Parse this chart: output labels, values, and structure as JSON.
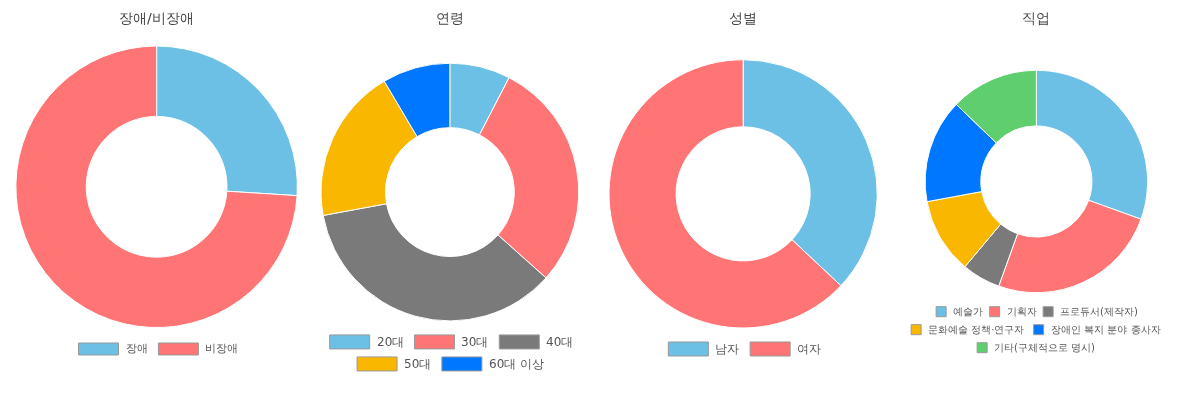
{
  "chart_data": [
    {
      "type": "donut",
      "title": "장애/비장애",
      "categories": [
        "장애",
        "비장애"
      ],
      "values": [
        26,
        74
      ],
      "colors": [
        "#6cc0e5",
        "#ff7575"
      ],
      "legend": "bottom"
    },
    {
      "type": "donut",
      "title": "연령",
      "categories": [
        "20대",
        "30대",
        "40대",
        "50대",
        "60대 이상"
      ],
      "values": [
        7.6,
        29,
        35.5,
        19.4,
        8.5
      ],
      "colors": [
        "#6cc0e5",
        "#ff7575",
        "#7a7a7a",
        "#fab700",
        "#0077ff"
      ],
      "legend": "bottom"
    },
    {
      "type": "donut",
      "title": "성별",
      "categories": [
        "남자",
        "여자"
      ],
      "values": [
        37,
        63
      ],
      "colors": [
        "#6cc0e5",
        "#ff7575"
      ],
      "legend": "bottom"
    },
    {
      "type": "donut",
      "title": "직업",
      "categories": [
        "예술가",
        "기획자",
        "프로듀서(제작자)",
        "문화예술 정책·연구자",
        "장애인 복지 분야 종사자",
        "기타(구체적으로 명시)"
      ],
      "values": [
        30.5,
        25,
        5.6,
        11,
        15.1,
        12.8
      ],
      "colors": [
        "#6cc0e5",
        "#ff7575",
        "#7a7a7a",
        "#fab700",
        "#0077ff",
        "#5fce6e"
      ],
      "legend": "bottom"
    }
  ]
}
